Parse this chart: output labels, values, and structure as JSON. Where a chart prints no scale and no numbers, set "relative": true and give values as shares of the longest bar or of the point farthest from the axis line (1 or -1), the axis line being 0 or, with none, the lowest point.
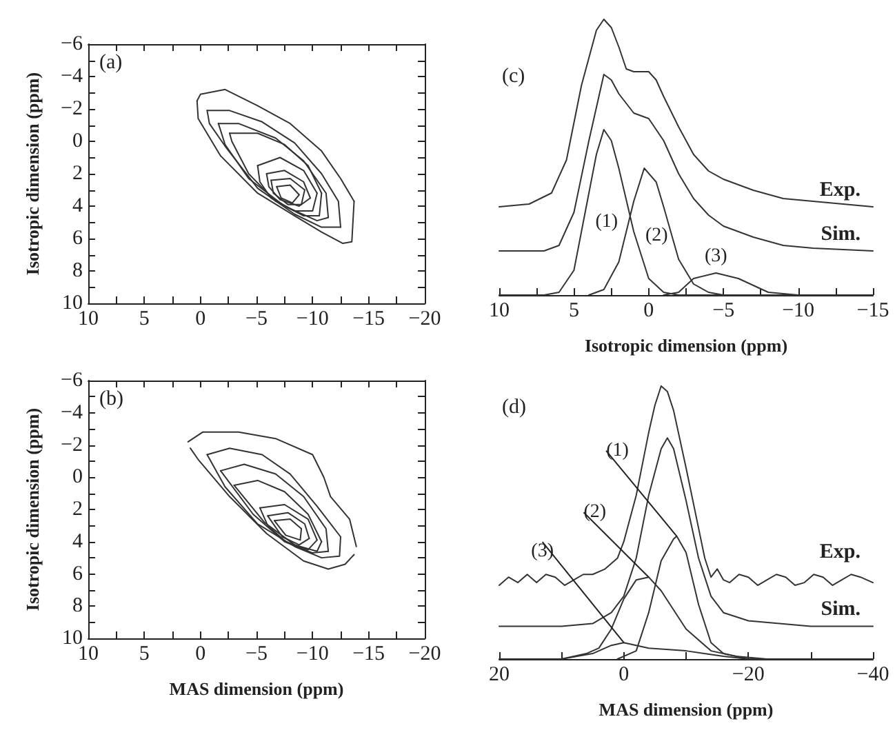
{
  "chart_data": [
    {
      "type": "line",
      "ylabel": "Isotropic dimension (ppm)",
      "annotations": [
        "(a)"
      ],
      "marker": "none",
      "line_style": "solid",
      "xlim": [
        10,
        -20
      ],
      "xticks": [
        10,
        {
          "value": 7.5,
          "label": null
        },
        5,
        {
          "value": 2.5,
          "label": null
        },
        0,
        {
          "value": -2.5,
          "label": null
        },
        -5,
        {
          "value": -7.5,
          "label": null
        },
        -10,
        {
          "value": -12.5,
          "label": null
        },
        -15,
        {
          "value": -17.5,
          "label": null
        },
        -20
      ],
      "ylim": [
        10,
        -6
      ],
      "yticks": [
        10,
        {
          "value": 9,
          "label": null
        },
        8,
        {
          "value": 7,
          "label": null
        },
        6,
        {
          "value": 5,
          "label": null
        },
        4,
        {
          "value": 3,
          "label": null
        },
        2,
        {
          "value": 1,
          "label": null
        },
        0,
        {
          "value": -1,
          "label": null
        },
        -2,
        {
          "value": -3,
          "label": null
        },
        -4,
        {
          "value": -5,
          "label": null
        },
        -6
      ],
      "series": [
        {
          "color": "#333333",
          "x": [
            0.3,
            0.0,
            -2.2,
            -5.1,
            -8.0,
            -10.8,
            -12.5,
            -13.7
          ],
          "values": [
            -2.5,
            -2.9,
            -3.2,
            -2.2,
            -1.1,
            0.6,
            2.3,
            3.7
          ]
        },
        {
          "color": "#333333",
          "x": [
            0.3,
            0.2,
            -1.8,
            -5.1,
            -8.4,
            -10.8,
            -12.7,
            -13.5,
            -13.7
          ],
          "values": [
            -2.5,
            -1.4,
            0.9,
            3.2,
            4.6,
            5.6,
            6.3,
            6.2,
            3.7
          ]
        },
        {
          "color": "#333333",
          "x": [
            -0.6,
            -2.6,
            -5.5,
            -8.4,
            -10.8,
            -12.3,
            -12.5
          ],
          "values": [
            -1.9,
            -1.9,
            -1.2,
            0.1,
            2.0,
            3.7,
            5.3
          ]
        },
        {
          "color": "#333333",
          "x": [
            -0.6,
            -0.8,
            -2.2,
            -5.1,
            -8.4,
            -10.8,
            -12.5
          ],
          "values": [
            -1.9,
            -1.1,
            0.3,
            2.9,
            4.5,
            5.3,
            5.3
          ]
        },
        {
          "color": "#333333",
          "x": [
            -1.6,
            -3.4,
            -6.7,
            -9.2,
            -11.2,
            -11.4
          ],
          "values": [
            -1.1,
            -1.1,
            -0.2,
            1.2,
            3.2,
            4.7
          ]
        },
        {
          "color": "#333333",
          "x": [
            -1.6,
            -2.2,
            -4.3,
            -7.5,
            -10.4,
            -11.4
          ],
          "values": [
            -1.1,
            0.2,
            2.3,
            4.0,
            4.9,
            4.7
          ]
        },
        {
          "color": "#333333",
          "x": [
            -2.6,
            -5.1,
            -7.5,
            -9.6,
            -10.8
          ],
          "values": [
            -0.5,
            -0.5,
            0.2,
            1.5,
            3.2
          ]
        },
        {
          "color": "#333333",
          "x": [
            -2.6,
            -2.8,
            -4.3,
            -6.7,
            -9.2,
            -10.6,
            -10.8
          ],
          "values": [
            -0.5,
            0.0,
            2.0,
            3.7,
            4.6,
            4.6,
            3.2
          ]
        },
        {
          "color": "#333333",
          "x": [
            -5.1,
            -7.1,
            -9.2,
            -10.4
          ],
          "values": [
            1.5,
            1.0,
            1.8,
            3.2
          ]
        },
        {
          "color": "#333333",
          "x": [
            -5.1,
            -5.3,
            -6.3,
            -8.4,
            -10.0,
            -10.4
          ],
          "values": [
            1.5,
            2.5,
            3.5,
            4.3,
            4.3,
            3.2
          ]
        },
        {
          "color": "#333333",
          "x": [
            -5.9,
            -7.5,
            -9.2,
            -9.8
          ],
          "values": [
            2.0,
            1.8,
            2.5,
            3.5
          ]
        },
        {
          "color": "#333333",
          "x": [
            -5.9,
            -6.1,
            -7.1,
            -8.8,
            -9.8
          ],
          "values": [
            2.0,
            2.8,
            3.6,
            4.0,
            3.5
          ]
        },
        {
          "color": "#333333",
          "x": [
            -6.3,
            -8.0,
            -9.3
          ],
          "values": [
            2.4,
            2.3,
            3.0
          ]
        },
        {
          "color": "#333333",
          "x": [
            -6.3,
            -6.5,
            -7.8,
            -9.0,
            -9.3
          ],
          "values": [
            2.4,
            3.2,
            3.9,
            3.9,
            3.0
          ]
        },
        {
          "color": "#333333",
          "x": [
            -6.8,
            -8.0,
            -8.8
          ],
          "values": [
            2.8,
            2.7,
            3.3
          ]
        },
        {
          "color": "#333333",
          "x": [
            -6.8,
            -7.2,
            -8.2,
            -8.8
          ],
          "values": [
            2.8,
            3.5,
            3.8,
            3.3
          ]
        }
      ]
    },
    {
      "type": "line",
      "xlabel": "MAS dimension (ppm)",
      "ylabel": "Isotropic dimension (ppm)",
      "annotations": [
        "(b)"
      ],
      "marker": "none",
      "line_style": "solid",
      "xlim": [
        10,
        -20
      ],
      "xticks": [
        10,
        {
          "value": 7.5,
          "label": null
        },
        5,
        {
          "value": 2.5,
          "label": null
        },
        0,
        {
          "value": -2.5,
          "label": null
        },
        -5,
        {
          "value": -7.5,
          "label": null
        },
        -10,
        {
          "value": -12.5,
          "label": null
        },
        -15,
        {
          "value": -17.5,
          "label": null
        },
        -20
      ],
      "ylim": [
        10,
        -6
      ],
      "yticks": [
        10,
        {
          "value": 9,
          "label": null
        },
        8,
        {
          "value": 7,
          "label": null
        },
        6,
        {
          "value": 5,
          "label": null
        },
        4,
        {
          "value": 3,
          "label": null
        },
        2,
        {
          "value": 1,
          "label": null
        },
        0,
        {
          "value": -1,
          "label": null
        },
        -2,
        {
          "value": -3,
          "label": null
        },
        -4,
        {
          "value": -5,
          "label": null
        },
        -6
      ],
      "series": [
        {
          "color": "#333333",
          "x": [
            1.1,
            -0.2,
            -3.4,
            -6.7,
            -10.0,
            -11.0,
            -11.6,
            -13.3,
            -13.9
          ],
          "values": [
            -2.2,
            -2.8,
            -2.8,
            -2.4,
            -1.4,
            0.0,
            1.2,
            2.6,
            4.3
          ]
        },
        {
          "color": "#333333",
          "x": [
            0.9,
            0.2,
            -2.6,
            -5.9,
            -9.2,
            -11.4,
            -12.9,
            -13.7
          ],
          "values": [
            -1.8,
            -1.1,
            1.2,
            3.5,
            5.2,
            5.7,
            5.4,
            4.8
          ]
        },
        {
          "color": "#333333",
          "x": [
            -0.6,
            -2.6,
            -5.5,
            -8.0,
            -10.4,
            -12.5
          ],
          "values": [
            -1.4,
            -1.8,
            -1.4,
            -0.2,
            1.8,
            3.7
          ]
        },
        {
          "color": "#333333",
          "x": [
            -0.6,
            -2.2,
            -5.1,
            -8.4,
            -10.8,
            -12.4,
            -12.5
          ],
          "values": [
            -1.4,
            0.6,
            2.9,
            4.3,
            5.0,
            4.9,
            3.7
          ]
        },
        {
          "color": "#333333",
          "x": [
            -1.8,
            -3.9,
            -6.7,
            -9.2,
            -11.2,
            -11.4
          ],
          "values": [
            -0.4,
            -0.8,
            -0.2,
            1.2,
            3.2,
            4.6
          ]
        },
        {
          "color": "#333333",
          "x": [
            -1.8,
            -4.7,
            -7.5,
            -10.0,
            -11.4
          ],
          "values": [
            -0.4,
            2.3,
            4.0,
            4.7,
            4.6
          ]
        },
        {
          "color": "#333333",
          "x": [
            -3.0,
            -5.1,
            -7.5,
            -9.6,
            -10.8
          ],
          "values": [
            0.5,
            0.2,
            0.9,
            2.3,
            4.0
          ]
        },
        {
          "color": "#333333",
          "x": [
            -3.0,
            -5.7,
            -8.4,
            -10.4,
            -10.8
          ],
          "values": [
            0.5,
            2.8,
            4.2,
            4.6,
            4.0
          ]
        },
        {
          "color": "#333333",
          "x": [
            -5.3,
            -7.5,
            -9.6,
            -10.4
          ],
          "values": [
            1.9,
            1.7,
            2.6,
            3.9
          ]
        },
        {
          "color": "#333333",
          "x": [
            -5.3,
            -6.0,
            -7.6,
            -9.6,
            -10.4
          ],
          "values": [
            1.9,
            3.0,
            4.0,
            4.5,
            3.9
          ]
        },
        {
          "color": "#333333",
          "x": [
            -6.0,
            -7.8,
            -9.3,
            -9.7
          ],
          "values": [
            2.4,
            2.2,
            2.9,
            3.8
          ]
        },
        {
          "color": "#333333",
          "x": [
            -6.0,
            -7.3,
            -8.8,
            -9.7
          ],
          "values": [
            2.4,
            3.7,
            4.2,
            3.8
          ]
        },
        {
          "color": "#333333",
          "x": [
            -6.6,
            -8.0,
            -9.0
          ],
          "values": [
            2.7,
            2.6,
            3.2
          ]
        },
        {
          "color": "#333333",
          "x": [
            -6.6,
            -7.6,
            -8.9,
            -9.0
          ],
          "values": [
            2.7,
            3.6,
            3.9,
            3.2
          ]
        }
      ]
    },
    {
      "type": "line",
      "xlabel": "Isotropic dimension (ppm)",
      "annotations": [
        "(c)"
      ],
      "relative": true,
      "tick_labels": "x",
      "marker": "none",
      "line_style": "solid",
      "xlim": [
        10,
        -15
      ],
      "xticks": [
        10,
        {
          "value": 7.5,
          "label": null
        },
        5,
        {
          "value": 2.5,
          "label": null
        },
        0,
        {
          "value": -2.5,
          "label": null
        },
        -5,
        {
          "value": -7.5,
          "label": null
        },
        -10,
        {
          "value": -12.5,
          "label": null
        },
        -15
      ],
      "series": [
        {
          "name": "Exp.",
          "color": "#333333",
          "x": [
            10,
            8,
            6.5,
            5.5,
            4.5,
            3.5,
            3,
            2.5,
            2,
            1.5,
            1,
            0.5,
            0,
            -0.5,
            -1,
            -2,
            -3,
            -4,
            -5,
            -7,
            -9,
            -11,
            -13,
            -15
          ],
          "values": [
            0.32,
            0.33,
            0.37,
            0.49,
            0.76,
            0.96,
            1.0,
            0.97,
            0.9,
            0.82,
            0.81,
            0.81,
            0.81,
            0.78,
            0.72,
            0.61,
            0.51,
            0.45,
            0.42,
            0.38,
            0.35,
            0.34,
            0.33,
            0.32
          ]
        },
        {
          "name": "Sim.",
          "color": "#333333",
          "x": [
            10,
            7,
            6,
            5,
            4,
            3,
            2.5,
            2,
            1,
            0,
            -1,
            -2,
            -3,
            -4,
            -5,
            -7,
            -9,
            -11,
            -15
          ],
          "values": [
            0.16,
            0.16,
            0.18,
            0.3,
            0.56,
            0.8,
            0.78,
            0.73,
            0.66,
            0.64,
            0.56,
            0.44,
            0.35,
            0.29,
            0.25,
            0.21,
            0.18,
            0.17,
            0.16
          ]
        },
        {
          "name": "(1)",
          "color": "#333333",
          "x": [
            10,
            7,
            6,
            5,
            4,
            3.5,
            3,
            2.5,
            2,
            1,
            0,
            -1,
            -2,
            -15
          ],
          "values": [
            0,
            0,
            0.01,
            0.09,
            0.37,
            0.51,
            0.6,
            0.56,
            0.46,
            0.23,
            0.06,
            0.01,
            0,
            0
          ]
        },
        {
          "name": "(2)",
          "color": "#333333",
          "x": [
            4,
            3,
            2,
            1,
            0.3,
            -0.5,
            -1,
            -2,
            -3,
            -4,
            -5
          ],
          "values": [
            0,
            0.02,
            0.12,
            0.34,
            0.46,
            0.41,
            0.32,
            0.13,
            0.04,
            0.01,
            0
          ]
        },
        {
          "name": "(3)",
          "color": "#333333",
          "x": [
            -1,
            -2,
            -3,
            -4.5,
            -6,
            -8,
            -10
          ],
          "values": [
            0,
            0.01,
            0.06,
            0.08,
            0.06,
            0.01,
            0
          ]
        }
      ]
    },
    {
      "type": "line",
      "xlabel": "MAS dimension (ppm)",
      "annotations": [
        "(d)"
      ],
      "relative": true,
      "tick_labels": "x",
      "marker": "none",
      "line_style": "solid",
      "xlim": [
        20,
        -40
      ],
      "xticks": [
        20,
        {
          "value": 10,
          "label": null
        },
        0,
        {
          "value": -10,
          "label": null
        },
        -20,
        {
          "value": -30,
          "label": null
        },
        -40
      ],
      "series": [
        {
          "name": "Exp.",
          "color": "#333333",
          "x": [
            20,
            18.5,
            17,
            15.5,
            14,
            12.5,
            11,
            9.5,
            8,
            6.5,
            5,
            3,
            1,
            0,
            -2,
            -4,
            -5,
            -6,
            -7,
            -8,
            -10,
            -12,
            -13,
            -14,
            -15,
            -16,
            -17,
            -18.5,
            -20,
            -21.5,
            -23,
            -24.5,
            -26,
            -27.5,
            -29,
            -30.5,
            -32,
            -33.5,
            -35,
            -36.5,
            -38,
            -40
          ],
          "values": [
            0.27,
            0.3,
            0.28,
            0.31,
            0.28,
            0.31,
            0.3,
            0.27,
            0.29,
            0.31,
            0.31,
            0.33,
            0.37,
            0.43,
            0.6,
            0.83,
            0.93,
            1.0,
            0.98,
            0.91,
            0.7,
            0.48,
            0.37,
            0.3,
            0.33,
            0.29,
            0.28,
            0.31,
            0.3,
            0.27,
            0.29,
            0.31,
            0.3,
            0.27,
            0.28,
            0.31,
            0.3,
            0.27,
            0.29,
            0.31,
            0.3,
            0.28
          ]
        },
        {
          "name": "Sim.",
          "color": "#333333",
          "x": [
            20,
            10,
            5,
            2,
            0,
            -2,
            -4,
            -6,
            -7,
            -8,
            -10,
            -12,
            -14,
            -16,
            -20,
            -30,
            -40
          ],
          "values": [
            0.12,
            0.12,
            0.13,
            0.17,
            0.23,
            0.37,
            0.6,
            0.77,
            0.81,
            0.77,
            0.58,
            0.37,
            0.23,
            0.17,
            0.14,
            0.12,
            0.12
          ]
        },
        {
          "name": "(1)",
          "color": "#333333",
          "x": [
            1,
            -2,
            -4,
            -6,
            -8,
            -8.5,
            -10,
            -12,
            -14,
            -16,
            -20
          ],
          "values": [
            0,
            0.03,
            0.17,
            0.36,
            0.44,
            0.45,
            0.39,
            0.2,
            0.06,
            0.02,
            0
          ]
        },
        {
          "name": "(2)",
          "color": "#333333",
          "x": [
            10,
            6,
            4,
            2,
            0,
            -2,
            -4,
            -6,
            -8,
            -10,
            -14,
            -18,
            -23
          ],
          "values": [
            0,
            0.02,
            0.04,
            0.11,
            0.22,
            0.29,
            0.3,
            0.25,
            0.18,
            0.11,
            0.03,
            0.01,
            0
          ]
        },
        {
          "name": "(3)",
          "color": "#333333",
          "x": [
            20,
            10,
            5,
            2,
            0,
            -4,
            -10,
            -16,
            -20,
            -40
          ],
          "values": [
            0,
            0,
            0.02,
            0.05,
            0.06,
            0.04,
            0.03,
            0.01,
            0,
            0
          ]
        }
      ]
    }
  ]
}
